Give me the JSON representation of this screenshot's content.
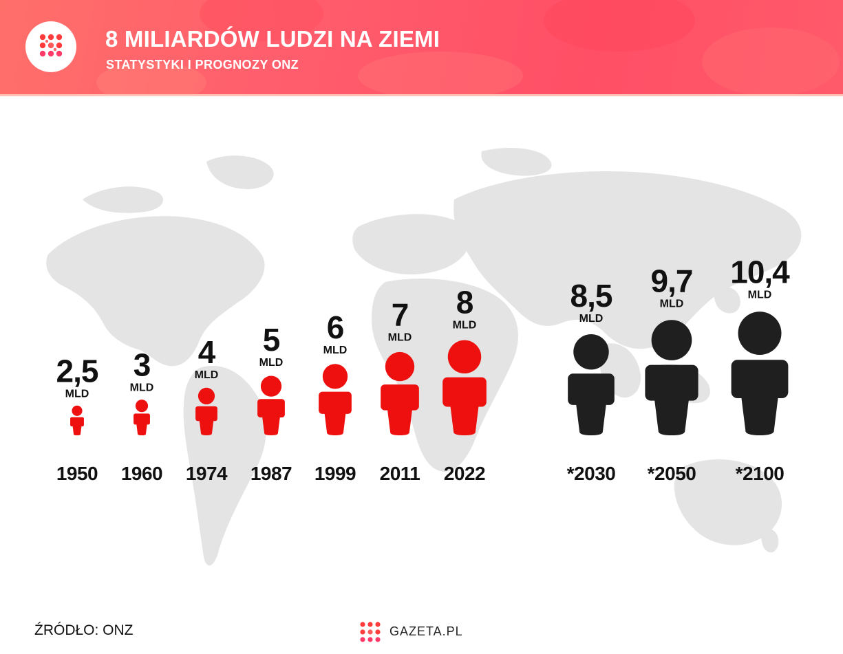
{
  "header": {
    "title": "8 MILIARDÓW LUDZI NA ZIEMI",
    "subtitle": "STATYSTYKI I PROGNOZY ONZ",
    "background": "#ff5d6c"
  },
  "footer": {
    "source": "ŹRÓDŁO: ONZ",
    "brand": "GAZETA.PL"
  },
  "colors": {
    "historical": "#ee0f0f",
    "forecast": "#1f1f1f",
    "map": "#e4e4e4",
    "text": "#111111"
  },
  "chart_data": {
    "type": "bar",
    "title": "8 MILIARDÓW LUDZI NA ZIEMI",
    "subtitle": "STATYSTYKI I PROGNOZY ONZ",
    "unit": "MLD",
    "categories": [
      "1950",
      "1960",
      "1974",
      "1987",
      "1999",
      "2011",
      "2022",
      "*2030",
      "*2050",
      "*2100"
    ],
    "value_labels": [
      "2,5",
      "3",
      "4",
      "5",
      "6",
      "7",
      "8",
      "8,5",
      "9,7",
      "10,4"
    ],
    "values": [
      2.5,
      3,
      4,
      5,
      6,
      7,
      8,
      8.5,
      9.7,
      10.4
    ],
    "forecast": [
      false,
      false,
      false,
      false,
      false,
      false,
      false,
      true,
      true,
      true
    ],
    "marker": "person-icon"
  }
}
